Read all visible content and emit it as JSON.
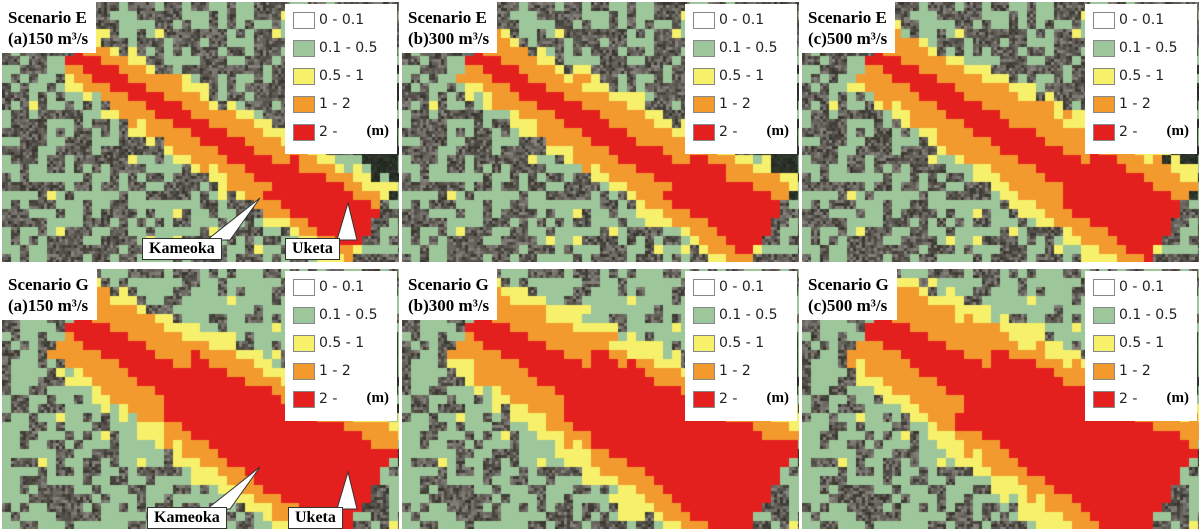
{
  "unit_label": "(m)",
  "legend": [
    {
      "label": "0 - 0.1",
      "color": "#ffffff"
    },
    {
      "label": "0.1 - 0.5",
      "color": "#9dc69a"
    },
    {
      "label": "0.5 - 1",
      "color": "#f6f06a"
    },
    {
      "label": "1 - 2",
      "color": "#f39a2e"
    },
    {
      "label": "2 -",
      "color": "#e4201f"
    }
  ],
  "places": {
    "kameoka": "Kameoka",
    "uketa": "Uketa"
  },
  "panels": [
    {
      "id": "e-a",
      "scenario": "Scenario  E",
      "discharge": "(a)150 m³/s",
      "show_places": true
    },
    {
      "id": "e-b",
      "scenario": "Scenario  E",
      "discharge": "(b)300 m³/s",
      "show_places": false
    },
    {
      "id": "e-c",
      "scenario": "Scenario  E",
      "discharge": "(c)500 m³/s",
      "show_places": false
    },
    {
      "id": "g-a",
      "scenario": "Scenario  G",
      "discharge": "(a)150 m³/s",
      "show_places": true
    },
    {
      "id": "g-b",
      "scenario": "Scenario  G",
      "discharge": "(b)300 m³/s",
      "show_places": false
    },
    {
      "id": "g-c",
      "scenario": "Scenario  G",
      "discharge": "(c)500 m³/s",
      "show_places": false
    }
  ]
}
